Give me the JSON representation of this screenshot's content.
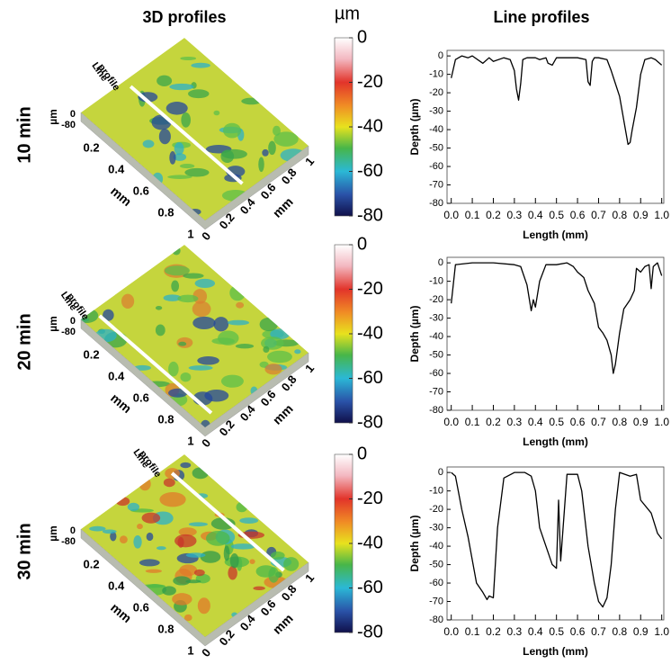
{
  "headers": [
    "3D profiles",
    "Line profiles"
  ],
  "profiles_3d": [
    {
      "row_label": "10 min",
      "line_label": [
        "Line",
        "profile"
      ],
      "z_label": "µm",
      "z_ticks": [
        0,
        -80
      ],
      "edge_label": "mm",
      "left_ticks": [
        0.2,
        0.4,
        0.6,
        0.8,
        1
      ],
      "right_ticks": [
        0,
        0.2,
        0.4,
        0.6,
        0.8,
        1
      ],
      "colorbar": {
        "label": "µm",
        "lim": [
          -80,
          0
        ],
        "ticks": [
          0,
          -20,
          -40,
          -60,
          -80
        ]
      }
    },
    {
      "row_label": "20 min",
      "line_label": [
        "Line",
        "profile"
      ],
      "z_label": "µm",
      "z_ticks": [
        0,
        -80
      ],
      "edge_label": "mm",
      "left_ticks": [
        0.2,
        0.4,
        0.6,
        0.8,
        1
      ],
      "right_ticks": [
        0,
        0.2,
        0.4,
        0.6,
        0.8,
        1
      ],
      "colorbar": {
        "label": "µm",
        "lim": [
          -80,
          0
        ],
        "ticks": [
          0,
          -20,
          -40,
          -60,
          -80
        ]
      }
    },
    {
      "row_label": "30 min",
      "line_label": [
        "Line",
        "profile"
      ],
      "z_label": "µm",
      "z_ticks": [
        0,
        -80
      ],
      "edge_label": "mm",
      "left_ticks": [
        0.2,
        0.4,
        0.6,
        0.8,
        1
      ],
      "right_ticks": [
        0,
        0.2,
        0.4,
        0.6,
        0.8,
        1
      ],
      "colorbar": {
        "label": "µm",
        "lim": [
          -80,
          0
        ],
        "ticks": [
          0,
          -20,
          -40,
          -60,
          -80
        ]
      }
    }
  ],
  "chart_data": [
    {
      "type": "line",
      "xlabel": "Length (mm)",
      "ylabel": "Depth (µm)",
      "color": "#000000",
      "x": [
        0,
        0.02,
        0.05,
        0.08,
        0.1,
        0.15,
        0.18,
        0.2,
        0.25,
        0.28,
        0.3,
        0.31,
        0.32,
        0.33,
        0.34,
        0.36,
        0.4,
        0.42,
        0.45,
        0.46,
        0.48,
        0.5,
        0.55,
        0.6,
        0.64,
        0.65,
        0.66,
        0.67,
        0.68,
        0.7,
        0.74,
        0.76,
        0.78,
        0.8,
        0.82,
        0.84,
        0.85,
        0.86,
        0.88,
        0.9,
        0.92,
        0.95,
        0.97,
        1.0
      ],
      "values": [
        -12,
        -2,
        0,
        -1,
        0,
        -4,
        -1,
        -3,
        -1,
        -2,
        -8,
        -18,
        -24,
        -15,
        -2,
        -1,
        -1,
        -2,
        -1,
        -4,
        -5,
        -1,
        -1,
        -1,
        -2,
        -14,
        -16,
        -3,
        -1,
        -1,
        -2,
        -8,
        -15,
        -22,
        -35,
        -48,
        -47,
        -40,
        -28,
        -10,
        -2,
        -1,
        -2,
        -5
      ],
      "xlim": [
        -0.02,
        1.01
      ],
      "ylim": [
        -80,
        3
      ],
      "xticks": [
        {
          "value": 0,
          "label": "0.0"
        },
        0.1,
        0.2,
        0.3,
        0.4,
        0.5,
        0.6,
        0.7,
        0.8,
        0.9,
        {
          "value": 1,
          "label": "1.0"
        }
      ],
      "yticks": [
        0,
        -10,
        -20,
        -30,
        -40,
        -50,
        -60,
        -70,
        -80
      ]
    },
    {
      "type": "line",
      "xlabel": "Length (mm)",
      "ylabel": "Depth (µm)",
      "color": "#000000",
      "x": [
        0,
        0.02,
        0.1,
        0.2,
        0.3,
        0.33,
        0.36,
        0.38,
        0.39,
        0.4,
        0.42,
        0.45,
        0.5,
        0.55,
        0.58,
        0.6,
        0.63,
        0.65,
        0.68,
        0.7,
        0.72,
        0.74,
        0.76,
        0.77,
        0.78,
        0.8,
        0.82,
        0.85,
        0.87,
        0.88,
        0.9,
        0.92,
        0.94,
        0.95,
        0.96,
        0.98,
        1.0
      ],
      "values": [
        -22,
        -1,
        0,
        0,
        -1,
        -2,
        -12,
        -26,
        -20,
        -24,
        -10,
        -1,
        -1,
        0,
        -2,
        -5,
        -8,
        -15,
        -22,
        -35,
        -38,
        -42,
        -50,
        -60,
        -55,
        -38,
        -25,
        -20,
        -15,
        -3,
        -5,
        -2,
        -1,
        -14,
        -2,
        0,
        -7
      ],
      "xlim": [
        -0.02,
        1.01
      ],
      "ylim": [
        -80,
        3
      ],
      "xticks": [
        {
          "value": 0,
          "label": "0.0"
        },
        0.1,
        0.2,
        0.3,
        0.4,
        0.5,
        0.6,
        0.7,
        0.8,
        0.9,
        {
          "value": 1,
          "label": "1.0"
        }
      ],
      "yticks": [
        0,
        -10,
        -20,
        -30,
        -40,
        -50,
        -60,
        -70,
        -80
      ]
    },
    {
      "type": "line",
      "xlabel": "Length (mm)",
      "ylabel": "Depth (µm)",
      "color": "#000000",
      "x": [
        0,
        0.02,
        0.03,
        0.05,
        0.08,
        0.12,
        0.15,
        0.17,
        0.18,
        0.2,
        0.22,
        0.25,
        0.3,
        0.35,
        0.38,
        0.4,
        0.42,
        0.45,
        0.48,
        0.5,
        0.51,
        0.52,
        0.55,
        0.6,
        0.62,
        0.65,
        0.68,
        0.7,
        0.72,
        0.74,
        0.76,
        0.78,
        0.8,
        0.85,
        0.88,
        0.9,
        0.95,
        0.98,
        1.0
      ],
      "values": [
        0,
        -2,
        -8,
        -20,
        -35,
        -60,
        -65,
        -69,
        -67,
        -68,
        -30,
        -3,
        0,
        0,
        -2,
        -10,
        -30,
        -40,
        -50,
        -52,
        -15,
        -48,
        -1,
        -1,
        -10,
        -40,
        -60,
        -70,
        -73,
        -68,
        -50,
        -20,
        0,
        -2,
        -1,
        -15,
        -22,
        -33,
        -36
      ],
      "xlim": [
        -0.02,
        1.01
      ],
      "ylim": [
        -80,
        3
      ],
      "xticks": [
        {
          "value": 0,
          "label": "0.0"
        },
        0.1,
        0.2,
        0.3,
        0.4,
        0.5,
        0.6,
        0.7,
        0.8,
        0.9,
        {
          "value": 1,
          "label": "1.0"
        }
      ],
      "yticks": [
        0,
        -10,
        -20,
        -30,
        -40,
        -50,
        -60,
        -70,
        -80
      ]
    }
  ]
}
